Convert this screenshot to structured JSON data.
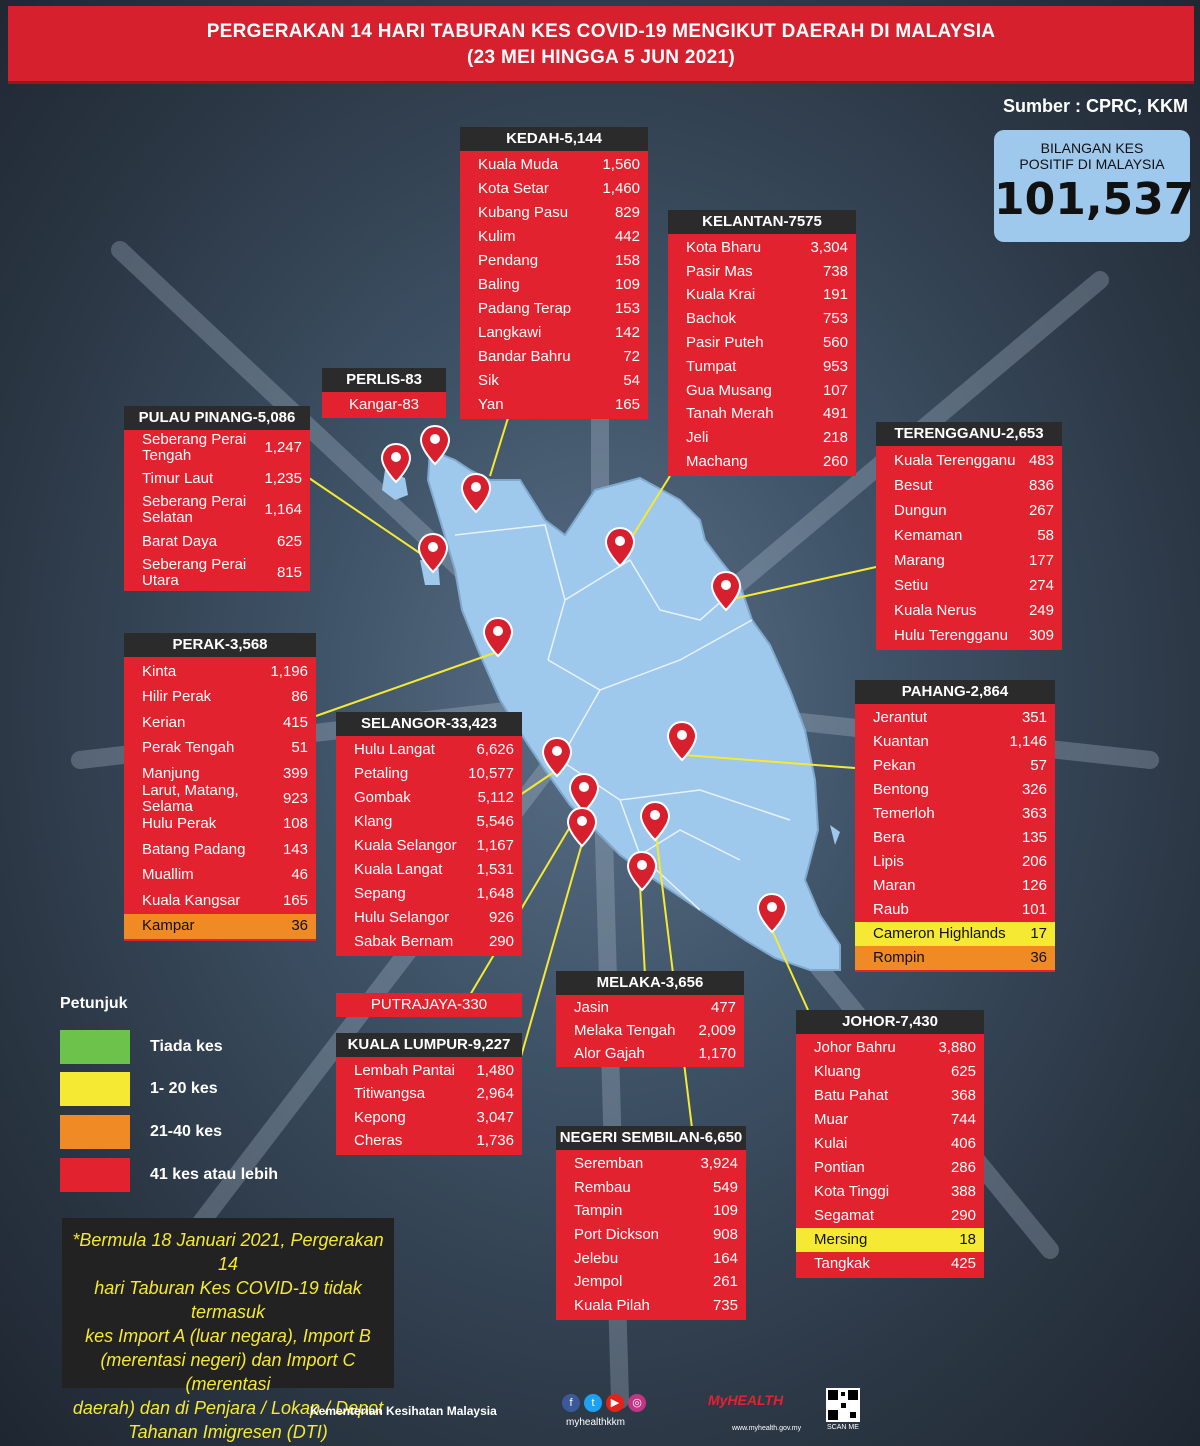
{
  "title_line1": "PERGERAKAN 14 HARI TABURAN KES COVID-19 MENGIKUT DAERAH DI MALAYSIA",
  "title_line2": "(23 MEI HINGGA 5 JUN 2021)",
  "source": "Sumber : CPRC, KKM",
  "total": {
    "label_line1": "BILANGAN KES",
    "label_line2": "POSITIF DI MALAYSIA",
    "value": "101,537"
  },
  "colors": {
    "red": "#e3222f",
    "yellow": "#f5e933",
    "orange": "#f08a24",
    "green": "#6dc24b",
    "map_land": "#9ec8ec",
    "pin": "#d6202e"
  },
  "states": {
    "kedah": {
      "header": "KEDAH-5,144",
      "rows": [
        {
          "name": "Kuala Muda",
          "value": "1,560"
        },
        {
          "name": "Kota Setar",
          "value": "1,460"
        },
        {
          "name": "Kubang Pasu",
          "value": "829"
        },
        {
          "name": "Kulim",
          "value": "442"
        },
        {
          "name": "Pendang",
          "value": "158"
        },
        {
          "name": "Baling",
          "value": "109"
        },
        {
          "name": "Padang Terap",
          "value": "153"
        },
        {
          "name": "Langkawi",
          "value": "142"
        },
        {
          "name": "Bandar Bahru",
          "value": "72"
        },
        {
          "name": "Sik",
          "value": "54"
        },
        {
          "name": "Yan",
          "value": "165"
        }
      ]
    },
    "kelantan": {
      "header": "KELANTAN-7575",
      "rows": [
        {
          "name": "Kota Bharu",
          "value": "3,304"
        },
        {
          "name": "Pasir Mas",
          "value": "738"
        },
        {
          "name": "Kuala Krai",
          "value": "191"
        },
        {
          "name": "Bachok",
          "value": "753"
        },
        {
          "name": "Pasir Puteh",
          "value": "560"
        },
        {
          "name": "Tumpat",
          "value": "953"
        },
        {
          "name": "Gua Musang",
          "value": "107"
        },
        {
          "name": "Tanah Merah",
          "value": "491"
        },
        {
          "name": "Jeli",
          "value": "218"
        },
        {
          "name": "Machang",
          "value": "260"
        }
      ]
    },
    "perlis": {
      "header": "PERLIS-83",
      "rows": [
        {
          "name": "Kangar-83",
          "value": ""
        }
      ]
    },
    "penang": {
      "header": "PULAU PINANG-5,086",
      "rows": [
        {
          "name": "Seberang Perai Tengah",
          "value": "1,247"
        },
        {
          "name": "Timur Laut",
          "value": "1,235"
        },
        {
          "name": "Seberang Perai Selatan",
          "value": "1,164"
        },
        {
          "name": "Barat Daya",
          "value": "625"
        },
        {
          "name": "Seberang Perai Utara",
          "value": "815"
        }
      ]
    },
    "terengganu": {
      "header": "TERENGGANU-2,653",
      "rows": [
        {
          "name": "Kuala Terengganu",
          "value": "483"
        },
        {
          "name": "Besut",
          "value": "836"
        },
        {
          "name": "Dungun",
          "value": "267"
        },
        {
          "name": "Kemaman",
          "value": "58"
        },
        {
          "name": "Marang",
          "value": "177"
        },
        {
          "name": "Setiu",
          "value": "274"
        },
        {
          "name": "Kuala Nerus",
          "value": "249"
        },
        {
          "name": "Hulu Terengganu",
          "value": "309"
        }
      ]
    },
    "perak": {
      "header": "PERAK-3,568",
      "rows": [
        {
          "name": "Kinta",
          "value": "1,196"
        },
        {
          "name": "Hilir Perak",
          "value": "86"
        },
        {
          "name": "Kerian",
          "value": "415"
        },
        {
          "name": "Perak Tengah",
          "value": "51"
        },
        {
          "name": "Manjung",
          "value": "399"
        },
        {
          "name": "Larut, Matang, Selama",
          "value": "923"
        },
        {
          "name": "Hulu Perak",
          "value": "108"
        },
        {
          "name": "Batang Padang",
          "value": "143"
        },
        {
          "name": "Muallim",
          "value": "46"
        },
        {
          "name": "Kuala Kangsar",
          "value": "165"
        },
        {
          "name": "Kampar",
          "value": "36",
          "level": "orange"
        }
      ]
    },
    "selangor": {
      "header": "SELANGOR-33,423",
      "rows": [
        {
          "name": "Hulu Langat",
          "value": "6,626"
        },
        {
          "name": "Petaling",
          "value": "10,577"
        },
        {
          "name": "Gombak",
          "value": "5,112"
        },
        {
          "name": "Klang",
          "value": "5,546"
        },
        {
          "name": "Kuala Selangor",
          "value": "1,167"
        },
        {
          "name": "Kuala Langat",
          "value": "1,531"
        },
        {
          "name": "Sepang",
          "value": "1,648"
        },
        {
          "name": "Hulu Selangor",
          "value": "926"
        },
        {
          "name": "Sabak Bernam",
          "value": "290"
        }
      ]
    },
    "pahang": {
      "header": "PAHANG-2,864",
      "rows": [
        {
          "name": "Jerantut",
          "value": "351"
        },
        {
          "name": "Kuantan",
          "value": "1,146"
        },
        {
          "name": "Pekan",
          "value": "57"
        },
        {
          "name": "Bentong",
          "value": "326"
        },
        {
          "name": "Temerloh",
          "value": "363"
        },
        {
          "name": "Bera",
          "value": "135"
        },
        {
          "name": "Lipis",
          "value": "206"
        },
        {
          "name": "Maran",
          "value": "126"
        },
        {
          "name": "Raub",
          "value": "101"
        },
        {
          "name": "Cameron Highlands",
          "value": "17",
          "level": "yellow"
        },
        {
          "name": "Rompin",
          "value": "36",
          "level": "orange"
        }
      ]
    },
    "putrajaya": {
      "header": "PUTRAJAYA-330"
    },
    "kl": {
      "header": "KUALA LUMPUR-9,227",
      "rows": [
        {
          "name": "Lembah Pantai",
          "value": "1,480"
        },
        {
          "name": "Titiwangsa",
          "value": "2,964"
        },
        {
          "name": "Kepong",
          "value": "3,047"
        },
        {
          "name": "Cheras",
          "value": "1,736"
        }
      ]
    },
    "melaka": {
      "header": "MELAKA-3,656",
      "rows": [
        {
          "name": "Jasin",
          "value": "477"
        },
        {
          "name": "Melaka Tengah",
          "value": "2,009"
        },
        {
          "name": "Alor Gajah",
          "value": "1,170"
        }
      ]
    },
    "johor": {
      "header": "JOHOR-7,430",
      "rows": [
        {
          "name": "Johor Bahru",
          "value": "3,880"
        },
        {
          "name": "Kluang",
          "value": "625"
        },
        {
          "name": "Batu Pahat",
          "value": "368"
        },
        {
          "name": "Muar",
          "value": "744"
        },
        {
          "name": "Kulai",
          "value": "406"
        },
        {
          "name": "Pontian",
          "value": "286"
        },
        {
          "name": "Kota Tinggi",
          "value": "388"
        },
        {
          "name": "Segamat",
          "value": "290"
        },
        {
          "name": "Mersing",
          "value": "18",
          "level": "yellow"
        },
        {
          "name": "Tangkak",
          "value": "425"
        }
      ]
    },
    "ns": {
      "header": "NEGERI SEMBILAN-6,650",
      "rows": [
        {
          "name": "Seremban",
          "value": "3,924"
        },
        {
          "name": "Rembau",
          "value": "549"
        },
        {
          "name": "Tampin",
          "value": "109"
        },
        {
          "name": "Port Dickson",
          "value": "908"
        },
        {
          "name": "Jelebu",
          "value": "164"
        },
        {
          "name": "Jempol",
          "value": "261"
        },
        {
          "name": "Kuala Pilah",
          "value": "735"
        }
      ]
    }
  },
  "legend": {
    "title": "Petunjuk",
    "items": [
      {
        "label": "Tiada kes",
        "color": "#6dc24b"
      },
      {
        "label": "1- 20 kes",
        "color": "#f5e933"
      },
      {
        "label": "21-40 kes",
        "color": "#f08a24"
      },
      {
        "label": "41 kes atau lebih",
        "color": "#e3222f"
      }
    ]
  },
  "note_lines": [
    "*Bermula 18 Januari 2021, Pergerakan 14",
    "hari Taburan Kes COVID-19 tidak termasuk",
    "kes Import A (luar negara), Import B",
    "(merentasi negeri) dan Import C (merentasi",
    "daerah) dan di Penjara / Lokap / Depot",
    "Tahanan Imigresen (DTI)"
  ],
  "footer": {
    "ministry": "Kementerian Kesihatan Malaysia",
    "handle": "myhealthkkm",
    "brand": "MyHEALTH",
    "url": "www.myhealth.gov.my",
    "scan": "SCAN ME"
  },
  "icons": [
    "map-pin-icon",
    "facebook-icon",
    "twitter-icon",
    "youtube-icon",
    "instagram-icon",
    "qr-code-icon"
  ]
}
